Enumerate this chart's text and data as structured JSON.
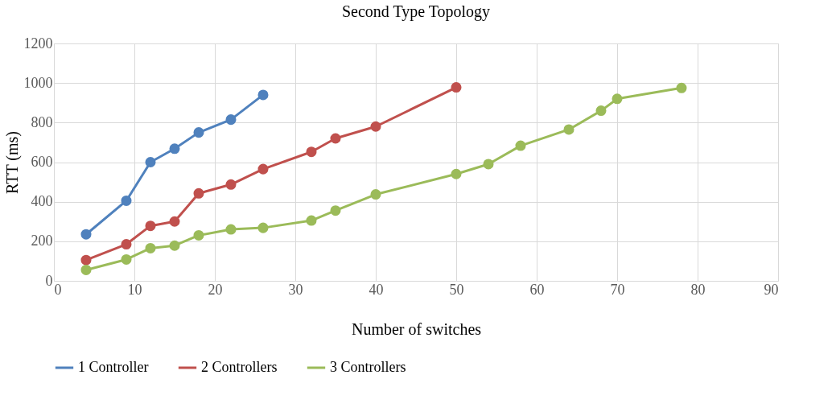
{
  "chart_data": {
    "type": "line",
    "title": "Second Type Topology",
    "xlabel": "Number of switches",
    "ylabel": "RTT (ms)",
    "xlim": [
      0,
      90
    ],
    "xticks": [
      0,
      10,
      20,
      30,
      40,
      50,
      60,
      70,
      80,
      90
    ],
    "ylim": [
      0,
      1200
    ],
    "yticks": [
      0,
      200,
      400,
      600,
      800,
      1000,
      1200
    ],
    "grid": true,
    "legend": "bottom",
    "marker": "circle",
    "line_style": "solid",
    "series": [
      {
        "name": "1 Controller",
        "color": "#4f81bd",
        "x": [
          4,
          9,
          12,
          15,
          18,
          22,
          26
        ],
        "values": [
          235,
          405,
          600,
          668,
          750,
          815,
          940
        ]
      },
      {
        "name": "2 Controllers",
        "color": "#c0504d",
        "x": [
          4,
          9,
          12,
          15,
          18,
          22,
          26,
          32,
          35,
          40,
          50
        ],
        "values": [
          105,
          185,
          278,
          300,
          442,
          487,
          565,
          652,
          720,
          780,
          978
        ]
      },
      {
        "name": "3 Controllers",
        "color": "#9bbb59",
        "x": [
          4,
          9,
          12,
          15,
          18,
          22,
          26,
          32,
          35,
          40,
          50,
          54,
          58,
          64,
          68,
          70,
          78
        ],
        "values": [
          55,
          108,
          165,
          178,
          230,
          260,
          268,
          305,
          355,
          437,
          540,
          590,
          683,
          765,
          860,
          920,
          975
        ]
      }
    ]
  }
}
